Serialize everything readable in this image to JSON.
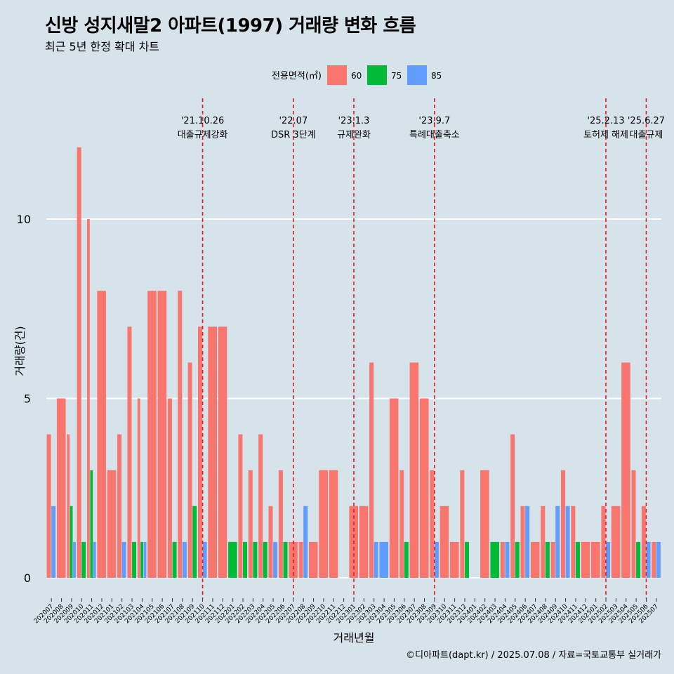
{
  "chart_data": {
    "type": "bar",
    "title": "신방 성지새말2 아파트(1997) 거래량 변화 흐름",
    "subtitle": "최근 5년 한정 확대 차트",
    "xlabel": "거래년월",
    "ylabel": "거래량(건)",
    "caption": "©디아파트(dapt.kr) / 2025.07.08 / 자료=국토교통부 실거래가",
    "legend": {
      "title": "전용면적(㎡)",
      "position": "top",
      "items": [
        "60",
        "75",
        "85"
      ]
    },
    "colors": {
      "60": "#f8766d",
      "75": "#00ba38",
      "85": "#619cff",
      "background": "#d6e3ea",
      "grid": "#ffffff",
      "event_line": "#e41a1c"
    },
    "ylim": [
      0,
      12
    ],
    "yticks": [
      0,
      5,
      10
    ],
    "grid": true,
    "categories": [
      "202007",
      "202008",
      "202009",
      "202010",
      "202011",
      "202012",
      "202101",
      "202102",
      "202103",
      "202104",
      "202105",
      "202106",
      "202107",
      "202108",
      "202109",
      "202110",
      "202111",
      "202112",
      "202201",
      "202202",
      "202203",
      "202204",
      "202205",
      "202206",
      "202207",
      "202208",
      "202209",
      "202210",
      "202211",
      "202212",
      "202301",
      "202302",
      "202303",
      "202304",
      "202305",
      "202306",
      "202307",
      "202308",
      "202309",
      "202310",
      "202311",
      "202312",
      "202401",
      "202402",
      "202403",
      "202404",
      "202405",
      "202406",
      "202407",
      "202408",
      "202409",
      "202410",
      "202411",
      "202412",
      "202501",
      "202502",
      "202503",
      "202504",
      "202505",
      "202506",
      "202507"
    ],
    "series": [
      {
        "name": "60",
        "values": [
          4,
          5,
          4,
          12,
          10,
          8,
          3,
          4,
          7,
          5,
          8,
          8,
          5,
          8,
          6,
          7,
          7,
          7,
          0,
          4,
          3,
          4,
          2,
          3,
          1,
          1,
          1,
          3,
          3,
          0,
          2,
          2,
          6,
          0,
          5,
          3,
          6,
          5,
          3,
          2,
          1,
          3,
          0,
          3,
          0,
          1,
          4,
          2,
          1,
          2,
          1,
          3,
          2,
          1,
          1,
          2,
          2,
          6,
          3,
          2,
          1
        ]
      },
      {
        "name": "75",
        "values": [
          0,
          0,
          2,
          1,
          3,
          0,
          0,
          0,
          1,
          1,
          0,
          0,
          1,
          0,
          2,
          0,
          0,
          0,
          1,
          1,
          1,
          1,
          0,
          1,
          0,
          0,
          0,
          0,
          0,
          0,
          0,
          0,
          0,
          0,
          0,
          1,
          0,
          0,
          0,
          0,
          0,
          1,
          0,
          0,
          1,
          0,
          1,
          0,
          0,
          1,
          0,
          0,
          1,
          0,
          0,
          0,
          0,
          0,
          1,
          0,
          0
        ]
      },
      {
        "name": "85",
        "values": [
          2,
          0,
          1,
          0,
          1,
          0,
          0,
          1,
          0,
          1,
          0,
          0,
          0,
          1,
          0,
          1,
          0,
          0,
          0,
          0,
          0,
          0,
          1,
          0,
          0,
          2,
          0,
          0,
          0,
          0,
          0,
          0,
          1,
          1,
          0,
          0,
          0,
          0,
          1,
          0,
          0,
          0,
          0,
          0,
          0,
          1,
          0,
          2,
          0,
          0,
          2,
          2,
          0,
          0,
          0,
          1,
          0,
          0,
          0,
          1,
          1
        ]
      }
    ],
    "events": [
      {
        "date_label": "'21.10.26",
        "label": "대출규제강화",
        "at": "202110"
      },
      {
        "date_label": "'22.07",
        "label": "DSR 3단계",
        "at": "202207"
      },
      {
        "date_label": "'23.1.3",
        "label": "규제완화",
        "at": "202301"
      },
      {
        "date_label": "'23.9.7",
        "label": "특례대출축소",
        "at": "202309"
      },
      {
        "date_label": "'25.2.13",
        "label": "토허제 해제",
        "at": "202502"
      },
      {
        "date_label": "'25.6.27",
        "label": "대출규제",
        "at": "202506"
      }
    ]
  }
}
